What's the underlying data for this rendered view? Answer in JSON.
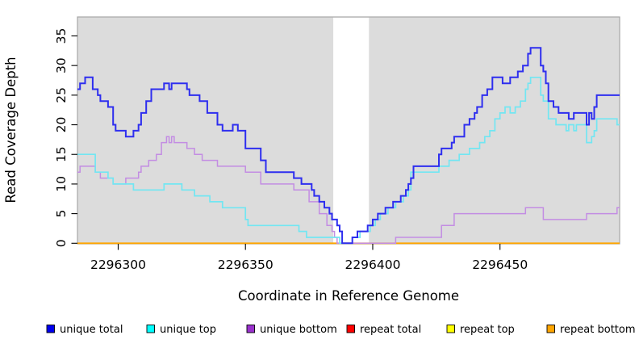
{
  "chart_data": {
    "type": "line",
    "step": true,
    "title": "",
    "xlabel": "Coordinate in Reference Genome",
    "ylabel": "Read Coverage Depth",
    "xlim": [
      2296284,
      2296497
    ],
    "ylim": [
      0,
      38.2
    ],
    "x_ticks": [
      2296300,
      2296350,
      2296400,
      2296450
    ],
    "y_ticks": [
      0,
      5,
      10,
      15,
      20,
      25,
      30,
      35
    ],
    "grid": "off",
    "legend_position": "bottom",
    "panel_background": "#DCDCDC",
    "panel_border": "#A6A6A6",
    "masked_region": {
      "x0": 2296384.5,
      "x1": 2296398.5,
      "color": "#FFFFFF"
    },
    "series": [
      {
        "name": "repeat total",
        "slug": "repeat-total",
        "legend_color": "#FF0000",
        "line_color": "#CC0000",
        "width": 1.4,
        "points": [
          [
            2296284,
            0
          ]
        ]
      },
      {
        "name": "repeat top",
        "slug": "repeat-top",
        "legend_color": "#FFFF00",
        "line_color": "#FFFF00",
        "width": 1.4,
        "points": [
          [
            2296284,
            0
          ]
        ]
      },
      {
        "name": "repeat bottom",
        "slug": "repeat-bottom",
        "legend_color": "#FFA500",
        "line_color": "#FFA500",
        "width": 1.8,
        "points": [
          [
            2296284,
            0
          ]
        ]
      },
      {
        "name": "unique bottom",
        "slug": "unique-bottom",
        "legend_color": "#9A32CD",
        "line_color": "#C38DE3",
        "width": 1.5,
        "points": [
          [
            2296284,
            12
          ],
          [
            2296285,
            13
          ],
          [
            2296291,
            12
          ],
          [
            2296293,
            11
          ],
          [
            2296298,
            10
          ],
          [
            2296303,
            11
          ],
          [
            2296308,
            12
          ],
          [
            2296309,
            13
          ],
          [
            2296312,
            14
          ],
          [
            2296315,
            15
          ],
          [
            2296317,
            17
          ],
          [
            2296319,
            18
          ],
          [
            2296320,
            17
          ],
          [
            2296321,
            18
          ],
          [
            2296322,
            17
          ],
          [
            2296327,
            16
          ],
          [
            2296330,
            15
          ],
          [
            2296333,
            14
          ],
          [
            2296339,
            13
          ],
          [
            2296350,
            12
          ],
          [
            2296356,
            10
          ],
          [
            2296369,
            9
          ],
          [
            2296375,
            7
          ],
          [
            2296379,
            5
          ],
          [
            2296382,
            3
          ],
          [
            2296384,
            2
          ],
          [
            2296385,
            1
          ],
          [
            2296386,
            0
          ],
          [
            2296409,
            1
          ],
          [
            2296427,
            3
          ],
          [
            2296432,
            5
          ],
          [
            2296460,
            6
          ],
          [
            2296467,
            4
          ],
          [
            2296484,
            5
          ],
          [
            2296496,
            6
          ]
        ]
      },
      {
        "name": "unique top",
        "slug": "unique-top",
        "legend_color": "#00FFFF",
        "line_color": "#72E6F2",
        "width": 1.7,
        "points": [
          [
            2296284,
            15
          ],
          [
            2296291,
            12
          ],
          [
            2296296,
            11
          ],
          [
            2296298,
            10
          ],
          [
            2296306,
            9
          ],
          [
            2296318,
            10
          ],
          [
            2296325,
            9
          ],
          [
            2296330,
            8
          ],
          [
            2296336,
            7
          ],
          [
            2296341,
            6
          ],
          [
            2296350,
            4
          ],
          [
            2296351,
            3
          ],
          [
            2296371,
            2
          ],
          [
            2296374,
            1
          ],
          [
            2296387,
            0
          ],
          [
            2296392,
            1
          ],
          [
            2296395,
            2
          ],
          [
            2296399,
            3
          ],
          [
            2296401,
            4
          ],
          [
            2296403,
            5
          ],
          [
            2296406,
            6
          ],
          [
            2296409,
            7
          ],
          [
            2296412,
            8
          ],
          [
            2296414,
            9
          ],
          [
            2296415,
            12
          ],
          [
            2296426,
            13
          ],
          [
            2296430,
            14
          ],
          [
            2296434,
            15
          ],
          [
            2296438,
            16
          ],
          [
            2296442,
            17
          ],
          [
            2296444,
            18
          ],
          [
            2296446,
            19
          ],
          [
            2296448,
            21
          ],
          [
            2296450,
            22
          ],
          [
            2296452,
            23
          ],
          [
            2296454,
            22
          ],
          [
            2296456,
            23
          ],
          [
            2296458,
            24
          ],
          [
            2296460,
            26
          ],
          [
            2296461,
            27
          ],
          [
            2296462,
            28
          ],
          [
            2296466,
            25
          ],
          [
            2296467,
            24
          ],
          [
            2296469,
            21
          ],
          [
            2296472,
            20
          ],
          [
            2296476,
            19
          ],
          [
            2296477,
            20
          ],
          [
            2296479,
            19
          ],
          [
            2296480,
            20
          ],
          [
            2296484,
            17
          ],
          [
            2296486,
            18
          ],
          [
            2296487,
            19
          ],
          [
            2296488,
            21
          ],
          [
            2296496,
            20
          ]
        ]
      },
      {
        "name": "unique total",
        "slug": "unique-total",
        "legend_color": "#0000EE",
        "line_color": "#2E2EEF",
        "width": 2,
        "points": [
          [
            2296284,
            26
          ],
          [
            2296285,
            27
          ],
          [
            2296287,
            28
          ],
          [
            2296290,
            26
          ],
          [
            2296292,
            25
          ],
          [
            2296293,
            24
          ],
          [
            2296296,
            23
          ],
          [
            2296298,
            20
          ],
          [
            2296299,
            19
          ],
          [
            2296303,
            18
          ],
          [
            2296306,
            19
          ],
          [
            2296308,
            20
          ],
          [
            2296309,
            22
          ],
          [
            2296311,
            24
          ],
          [
            2296313,
            26
          ],
          [
            2296318,
            27
          ],
          [
            2296320,
            26
          ],
          [
            2296321,
            27
          ],
          [
            2296327,
            26
          ],
          [
            2296328,
            25
          ],
          [
            2296332,
            24
          ],
          [
            2296335,
            22
          ],
          [
            2296339,
            20
          ],
          [
            2296341,
            19
          ],
          [
            2296345,
            20
          ],
          [
            2296347,
            19
          ],
          [
            2296350,
            16
          ],
          [
            2296356,
            14
          ],
          [
            2296358,
            12
          ],
          [
            2296369,
            11
          ],
          [
            2296372,
            10
          ],
          [
            2296376,
            9
          ],
          [
            2296377,
            8
          ],
          [
            2296379,
            7
          ],
          [
            2296381,
            6
          ],
          [
            2296383,
            5
          ],
          [
            2296384,
            4
          ],
          [
            2296386,
            3
          ],
          [
            2296387,
            2
          ],
          [
            2296388,
            0
          ],
          [
            2296392,
            1
          ],
          [
            2296394,
            2
          ],
          [
            2296398,
            3
          ],
          [
            2296400,
            4
          ],
          [
            2296402,
            5
          ],
          [
            2296405,
            6
          ],
          [
            2296408,
            7
          ],
          [
            2296411,
            8
          ],
          [
            2296413,
            9
          ],
          [
            2296414,
            10
          ],
          [
            2296415,
            11
          ],
          [
            2296416,
            13
          ],
          [
            2296426,
            15
          ],
          [
            2296427,
            16
          ],
          [
            2296431,
            17
          ],
          [
            2296432,
            18
          ],
          [
            2296436,
            20
          ],
          [
            2296438,
            21
          ],
          [
            2296440,
            22
          ],
          [
            2296441,
            23
          ],
          [
            2296443,
            25
          ],
          [
            2296445,
            26
          ],
          [
            2296447,
            28
          ],
          [
            2296451,
            27
          ],
          [
            2296454,
            28
          ],
          [
            2296457,
            29
          ],
          [
            2296459,
            30
          ],
          [
            2296461,
            32
          ],
          [
            2296462,
            33
          ],
          [
            2296466,
            30
          ],
          [
            2296467,
            29
          ],
          [
            2296468,
            27
          ],
          [
            2296469,
            24
          ],
          [
            2296471,
            23
          ],
          [
            2296473,
            22
          ],
          [
            2296477,
            21
          ],
          [
            2296479,
            22
          ],
          [
            2296484,
            20
          ],
          [
            2296485,
            22
          ],
          [
            2296486,
            21
          ],
          [
            2296487,
            23
          ],
          [
            2296488,
            25
          ]
        ]
      }
    ],
    "legend_order": [
      "unique total",
      "unique top",
      "unique bottom",
      "repeat total",
      "repeat top",
      "repeat bottom"
    ]
  }
}
